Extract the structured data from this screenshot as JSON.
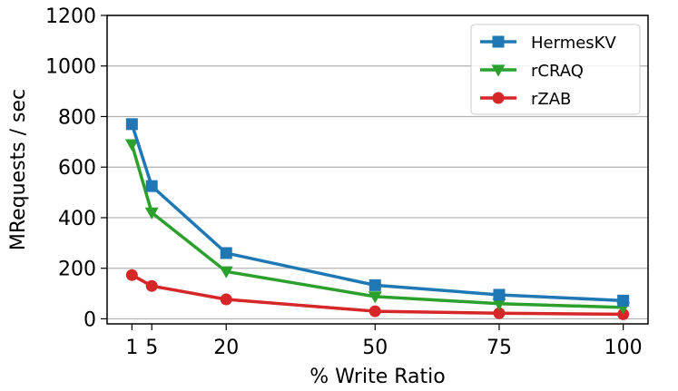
{
  "chart_data": {
    "type": "line",
    "title": "",
    "xlabel": "% Write Ratio",
    "ylabel": "MRequests / sec",
    "x": [
      1,
      5,
      20,
      50,
      75,
      100
    ],
    "x_ticks": [
      1,
      5,
      20,
      50,
      75,
      100
    ],
    "x_tick_labels": [
      "1",
      "5",
      "20",
      "50",
      "75",
      "100"
    ],
    "xlim": [
      -4,
      105
    ],
    "ylim": [
      -20,
      1200
    ],
    "y_ticks": [
      0,
      200,
      400,
      600,
      800,
      1000,
      1200
    ],
    "y_tick_labels": [
      "0",
      "200",
      "400",
      "600",
      "800",
      "1000",
      "1200"
    ],
    "grid": "horizontal",
    "legend_position": "top-right",
    "series": [
      {
        "name": "HermesKV",
        "color": "#1f77b4",
        "marker": "square",
        "values": [
          770,
          525,
          260,
          133,
          95,
          72
        ]
      },
      {
        "name": "rCRAQ",
        "color": "#2ca02c",
        "marker": "triangle-down",
        "values": [
          690,
          420,
          187,
          88,
          60,
          45
        ]
      },
      {
        "name": "rZAB",
        "color": "#d62728",
        "marker": "circle",
        "values": [
          173,
          130,
          77,
          30,
          22,
          18
        ]
      }
    ]
  }
}
